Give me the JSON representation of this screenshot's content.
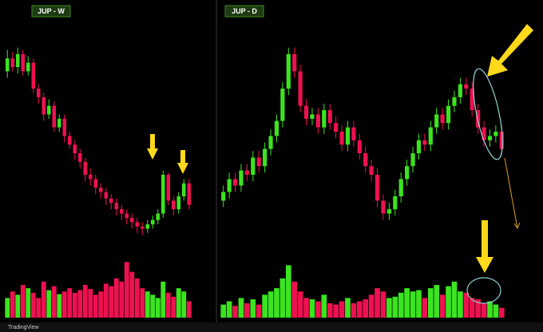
{
  "charts": [
    {
      "type": "candlestick",
      "title": "JUP - W",
      "up_color": "#3be41f",
      "down_color": "#ee1150",
      "ylim": [
        0,
        100
      ],
      "y2lim": [
        0,
        100
      ],
      "series": {
        "open": [
          78,
          84,
          80,
          86,
          78,
          82,
          70,
          66,
          58,
          62,
          52,
          56,
          48,
          44,
          40,
          36,
          30,
          28,
          24,
          22,
          19,
          17,
          14,
          12,
          10,
          8,
          6,
          5,
          7,
          9,
          12,
          30,
          18,
          14,
          20,
          26
        ],
        "high": [
          88,
          87,
          89,
          88,
          85,
          84,
          72,
          68,
          65,
          64,
          58,
          58,
          50,
          46,
          42,
          38,
          33,
          30,
          26,
          24,
          21,
          19,
          16,
          14,
          12,
          10,
          8,
          9,
          11,
          14,
          32,
          31,
          20,
          22,
          28,
          28
        ],
        "low": [
          75,
          78,
          77,
          76,
          76,
          68,
          63,
          55,
          56,
          50,
          50,
          45,
          42,
          37,
          33,
          27,
          25,
          21,
          19,
          16,
          14,
          11,
          9,
          7,
          5,
          3,
          2,
          3,
          5,
          7,
          10,
          16,
          11,
          12,
          18,
          14
        ],
        "close": [
          84,
          80,
          86,
          78,
          82,
          70,
          66,
          58,
          62,
          52,
          56,
          48,
          44,
          40,
          36,
          30,
          28,
          24,
          22,
          19,
          17,
          14,
          12,
          10,
          8,
          6,
          5,
          7,
          9,
          12,
          30,
          18,
          14,
          20,
          26,
          16
        ],
        "volume": [
          30,
          40,
          35,
          50,
          45,
          38,
          30,
          55,
          42,
          48,
          36,
          40,
          45,
          38,
          42,
          50,
          44,
          35,
          40,
          52,
          48,
          60,
          55,
          85,
          70,
          60,
          45,
          40,
          35,
          30,
          55,
          38,
          32,
          45,
          40,
          25
        ]
      }
    },
    {
      "type": "candlestick",
      "title": "JUP - D",
      "up_color": "#3be41f",
      "down_color": "#ee1150",
      "ylim": [
        0,
        100
      ],
      "y2lim": [
        0,
        100
      ],
      "series": {
        "open": [
          18,
          22,
          28,
          25,
          32,
          30,
          38,
          34,
          42,
          48,
          55,
          70,
          86,
          78,
          62,
          56,
          58,
          52,
          60,
          54,
          50,
          44,
          52,
          46,
          40,
          34,
          30,
          18,
          12,
          14,
          20,
          28,
          34,
          40,
          46,
          44,
          52,
          58,
          54,
          62,
          66,
          72,
          70,
          60,
          52,
          46,
          48,
          50
        ],
        "high": [
          25,
          31,
          31,
          35,
          35,
          41,
          41,
          45,
          51,
          58,
          73,
          89,
          89,
          81,
          65,
          61,
          61,
          63,
          63,
          57,
          53,
          55,
          55,
          49,
          43,
          37,
          33,
          21,
          17,
          23,
          31,
          37,
          43,
          49,
          49,
          55,
          61,
          61,
          65,
          69,
          75,
          75,
          73,
          63,
          55,
          51,
          53,
          53
        ],
        "low": [
          15,
          19,
          22,
          22,
          27,
          27,
          31,
          31,
          39,
          45,
          52,
          67,
          75,
          59,
          53,
          53,
          49,
          49,
          51,
          47,
          41,
          41,
          43,
          37,
          31,
          27,
          15,
          9,
          9,
          11,
          17,
          25,
          31,
          37,
          41,
          41,
          49,
          51,
          51,
          59,
          63,
          67,
          57,
          49,
          43,
          43,
          45,
          39
        ],
        "close": [
          22,
          28,
          25,
          32,
          30,
          38,
          34,
          42,
          48,
          55,
          70,
          86,
          78,
          62,
          56,
          58,
          52,
          60,
          54,
          50,
          44,
          52,
          46,
          40,
          34,
          30,
          18,
          12,
          14,
          20,
          28,
          34,
          40,
          46,
          44,
          52,
          58,
          54,
          62,
          66,
          72,
          70,
          60,
          52,
          46,
          48,
          50,
          42
        ],
        "volume": [
          20,
          25,
          18,
          30,
          22,
          28,
          20,
          35,
          40,
          45,
          60,
          80,
          55,
          40,
          30,
          28,
          25,
          35,
          22,
          20,
          25,
          30,
          22,
          25,
          28,
          35,
          45,
          40,
          30,
          32,
          38,
          45,
          40,
          42,
          30,
          45,
          50,
          35,
          48,
          55,
          40,
          38,
          30,
          28,
          22,
          25,
          20,
          15
        ]
      }
    }
  ],
  "footer": "TradingView"
}
